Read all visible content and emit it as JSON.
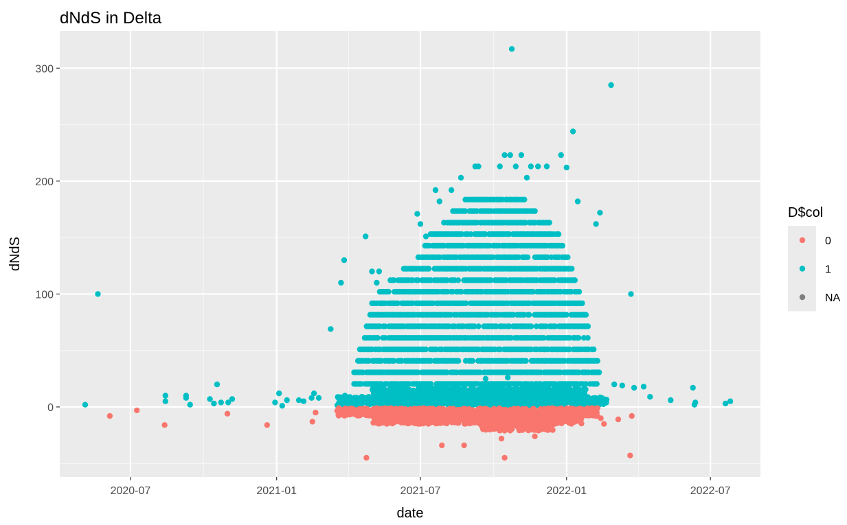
{
  "chart_data": {
    "type": "scatter",
    "title": "dNdS in Delta",
    "xlabel": "date",
    "ylabel": "dNdS",
    "x_type": "date",
    "xlim": [
      "2020-04-03",
      "2022-09-02"
    ],
    "ylim": [
      -62,
      333
    ],
    "x_ticks": [
      {
        "value": "2020-07-01",
        "label": "2020-07"
      },
      {
        "value": "2021-01-01",
        "label": "2021-01"
      },
      {
        "value": "2021-07-01",
        "label": "2021-07"
      },
      {
        "value": "2022-01-01",
        "label": "2022-01"
      },
      {
        "value": "2022-07-01",
        "label": "2022-07"
      }
    ],
    "y_ticks": [
      0,
      100,
      200,
      300
    ],
    "grid": true,
    "legend": {
      "title": "D$col",
      "placement": "right",
      "entries": [
        {
          "label": "0",
          "color": "#F8766D"
        },
        {
          "label": "1",
          "color": "#00BFC4"
        },
        {
          "label": "NA",
          "color": "#7F7F7F"
        }
      ]
    },
    "series": [
      {
        "name": "1",
        "color": "#00BFC4",
        "points": [
          [
            "2020-05-05",
            2
          ],
          [
            "2020-05-21",
            100
          ],
          [
            "2020-08-14",
            5
          ],
          [
            "2020-08-14",
            10
          ],
          [
            "2020-09-09",
            10
          ],
          [
            "2020-09-09",
            8
          ],
          [
            "2020-09-14",
            2
          ],
          [
            "2020-10-09",
            7
          ],
          [
            "2020-10-14",
            3
          ],
          [
            "2020-10-18",
            20
          ],
          [
            "2020-10-23",
            4
          ],
          [
            "2020-11-01",
            4
          ],
          [
            "2020-11-06",
            7
          ],
          [
            "2020-12-30",
            4
          ],
          [
            "2021-01-04",
            12
          ],
          [
            "2021-01-08",
            1
          ],
          [
            "2021-01-14",
            6
          ],
          [
            "2021-01-29",
            6
          ],
          [
            "2021-02-04",
            5
          ],
          [
            "2021-02-14",
            8
          ],
          [
            "2021-02-17",
            12
          ],
          [
            "2021-02-23",
            8
          ],
          [
            "2021-03-10",
            69
          ],
          [
            "2021-03-20",
            8
          ],
          [
            "2021-03-23",
            110
          ],
          [
            "2021-03-27",
            130
          ],
          [
            "2021-03-28",
            10
          ],
          [
            "2021-04-01",
            3
          ],
          [
            "2021-04-05",
            4
          ],
          [
            "2021-04-10",
            6
          ],
          [
            "2021-04-18",
            9
          ],
          [
            "2021-04-23",
            151
          ],
          [
            "2021-04-27",
            9
          ],
          [
            "2021-05-01",
            120
          ],
          [
            "2021-05-07",
            110
          ],
          [
            "2021-05-10",
            120
          ],
          [
            "2021-06-27",
            171
          ],
          [
            "2021-07-01",
            162
          ],
          [
            "2021-07-08",
            151
          ],
          [
            "2021-07-20",
            192
          ],
          [
            "2021-07-25",
            182
          ],
          [
            "2021-08-09",
            192
          ],
          [
            "2021-08-21",
            203
          ],
          [
            "2021-09-08",
            213
          ],
          [
            "2021-09-12",
            213
          ],
          [
            "2021-09-21",
            25
          ],
          [
            "2021-10-09",
            213
          ],
          [
            "2021-10-15",
            223
          ],
          [
            "2021-10-19",
            26
          ],
          [
            "2021-10-22",
            223
          ],
          [
            "2021-10-24",
            317
          ],
          [
            "2021-10-29",
            213
          ],
          [
            "2021-11-05",
            223
          ],
          [
            "2021-11-12",
            203
          ],
          [
            "2021-11-17",
            213
          ],
          [
            "2021-11-26",
            213
          ],
          [
            "2021-12-07",
            213
          ],
          [
            "2021-12-25",
            223
          ],
          [
            "2022-01-01",
            212
          ],
          [
            "2022-01-09",
            244
          ],
          [
            "2022-01-15",
            182
          ],
          [
            "2022-02-07",
            162
          ],
          [
            "2022-02-12",
            172
          ],
          [
            "2022-02-26",
            285
          ],
          [
            "2022-03-02",
            20
          ],
          [
            "2022-03-12",
            19
          ],
          [
            "2022-03-23",
            100
          ],
          [
            "2022-03-27",
            17
          ],
          [
            "2022-04-08",
            18
          ],
          [
            "2022-04-16",
            9
          ],
          [
            "2022-05-12",
            6
          ],
          [
            "2022-06-09",
            17
          ],
          [
            "2022-06-12",
            4
          ],
          [
            "2022-06-11",
            2
          ],
          [
            "2022-07-20",
            3
          ],
          [
            "2022-07-26",
            5
          ]
        ]
      },
      {
        "name": "0",
        "color": "#F8766D",
        "points": [
          [
            "2020-06-05",
            -8
          ],
          [
            "2020-07-09",
            -3
          ],
          [
            "2020-08-13",
            -16
          ],
          [
            "2020-10-31",
            -6
          ],
          [
            "2020-12-20",
            -16
          ],
          [
            "2021-02-15",
            -13
          ],
          [
            "2021-02-19",
            -5
          ],
          [
            "2021-04-24",
            -45
          ],
          [
            "2021-07-28",
            -34
          ],
          [
            "2021-08-25",
            -34
          ],
          [
            "2021-10-11",
            -28
          ],
          [
            "2021-10-15",
            -45
          ],
          [
            "2021-11-22",
            -26
          ],
          [
            "2022-02-13",
            -10
          ],
          [
            "2022-02-17",
            -15
          ],
          [
            "2022-03-07",
            -11
          ],
          [
            "2022-03-22",
            -43
          ],
          [
            "2022-03-24",
            -8
          ]
        ]
      },
      {
        "name": "NA",
        "color": "#7F7F7F",
        "points": []
      }
    ]
  }
}
